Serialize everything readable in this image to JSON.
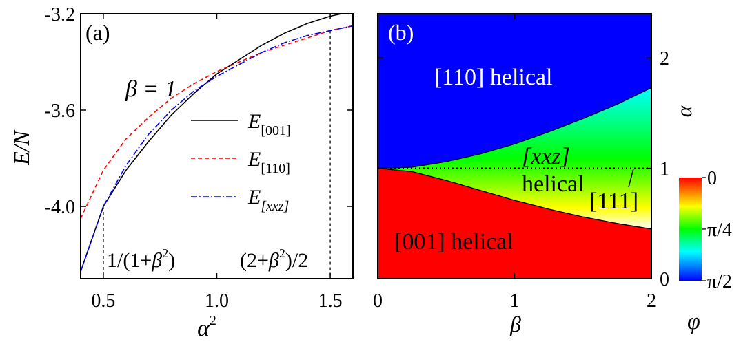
{
  "chart_data": [
    {
      "type": "line",
      "panel_label": "(a)",
      "xlabel": "α",
      "xlabel_sup": "2",
      "ylabel": "E/N",
      "xlim": [
        0.4,
        1.6
      ],
      "ylim": [
        -4.3,
        -3.2
      ],
      "x_ticks": [
        "0.5",
        "1.0",
        "1.5"
      ],
      "x_tick_values": [
        0.5,
        1.0,
        1.5
      ],
      "y_ticks": [
        "-3.2",
        "-3.6",
        "-4.0"
      ],
      "y_tick_values": [
        -3.2,
        -3.6,
        -4.0
      ],
      "annotation_beta": "β = 1",
      "markers": [
        {
          "x": 0.5,
          "label_parts": [
            "1/(1+",
            "β",
            "2",
            ")"
          ]
        },
        {
          "x": 1.5,
          "label_parts": [
            "(2+",
            "β",
            "2",
            ")/2"
          ]
        }
      ],
      "series": [
        {
          "base": "E",
          "subscript": "[001]",
          "subscript_italic": false,
          "color": "#000000",
          "style": "solid",
          "x": [
            0.4,
            0.5,
            0.6,
            0.7,
            0.8,
            0.9,
            1.0,
            1.1,
            1.2,
            1.3,
            1.4,
            1.5,
            1.55
          ],
          "y": [
            -4.27,
            -4.0,
            -3.85,
            -3.73,
            -3.62,
            -3.53,
            -3.45,
            -3.39,
            -3.33,
            -3.28,
            -3.24,
            -3.21,
            -3.2
          ]
        },
        {
          "base": "E",
          "subscript": "[110]",
          "subscript_italic": false,
          "color": "#ff0000",
          "style": "dashed",
          "x": [
            0.4,
            0.5,
            0.6,
            0.7,
            0.8,
            0.9,
            1.0,
            1.1,
            1.2,
            1.3,
            1.4,
            1.5,
            1.6
          ],
          "y": [
            -4.05,
            -3.85,
            -3.72,
            -3.63,
            -3.55,
            -3.49,
            -3.44,
            -3.4,
            -3.36,
            -3.33,
            -3.3,
            -3.27,
            -3.25
          ]
        },
        {
          "base": "E",
          "subscript": "[xxz]",
          "subscript_italic": true,
          "color": "#0000ff",
          "style": "dashdot",
          "x": [
            0.4,
            0.5,
            0.6,
            0.7,
            0.8,
            0.9,
            1.0,
            1.1,
            1.2,
            1.3,
            1.4,
            1.5,
            1.6
          ],
          "y": [
            -4.27,
            -4.0,
            -3.83,
            -3.7,
            -3.6,
            -3.52,
            -3.46,
            -3.41,
            -3.36,
            -3.32,
            -3.29,
            -3.27,
            -3.25
          ]
        }
      ]
    },
    {
      "type": "heatmap",
      "panel_label": "(b)",
      "xlabel": "β",
      "ylabel": "α",
      "xlim": [
        0,
        2
      ],
      "ylim": [
        0,
        2.4
      ],
      "x_ticks": [
        "0",
        "1",
        "2"
      ],
      "x_tick_values": [
        0,
        1,
        2
      ],
      "y_ticks": [
        "0",
        "1",
        "2"
      ],
      "y_tick_values": [
        0,
        1,
        2
      ],
      "colorbar": {
        "variable": "φ",
        "tick_labels": [
          "0",
          "π/4",
          "π/2"
        ],
        "tick_values": [
          0,
          0.785,
          1.571
        ],
        "range": [
          0,
          1.571
        ]
      },
      "upper_boundary": {
        "beta": [
          0,
          0.25,
          0.5,
          0.75,
          1,
          1.25,
          1.5,
          1.75,
          2
        ],
        "alpha": [
          1,
          1.01,
          1.06,
          1.13,
          1.22,
          1.33,
          1.45,
          1.58,
          1.73
        ]
      },
      "lower_boundary": {
        "beta": [
          0,
          0.25,
          0.5,
          0.75,
          1,
          1.25,
          1.5,
          1.75,
          2
        ],
        "alpha": [
          1,
          0.97,
          0.89,
          0.8,
          0.71,
          0.63,
          0.56,
          0.5,
          0.45
        ]
      },
      "dotted_line_alpha": 1,
      "region_labels": [
        {
          "text": "[110] helical",
          "region": "upper"
        },
        {
          "text": "[001] helical",
          "region": "lower"
        },
        {
          "text": "[xxz]",
          "italic": true,
          "region": "middle-upper"
        },
        {
          "text": "helical",
          "region": "middle"
        },
        {
          "text": "[111]",
          "region": "middle-lower"
        }
      ],
      "colors": {
        "upper": "#0000ff",
        "lower": "#ff0000"
      }
    }
  ]
}
